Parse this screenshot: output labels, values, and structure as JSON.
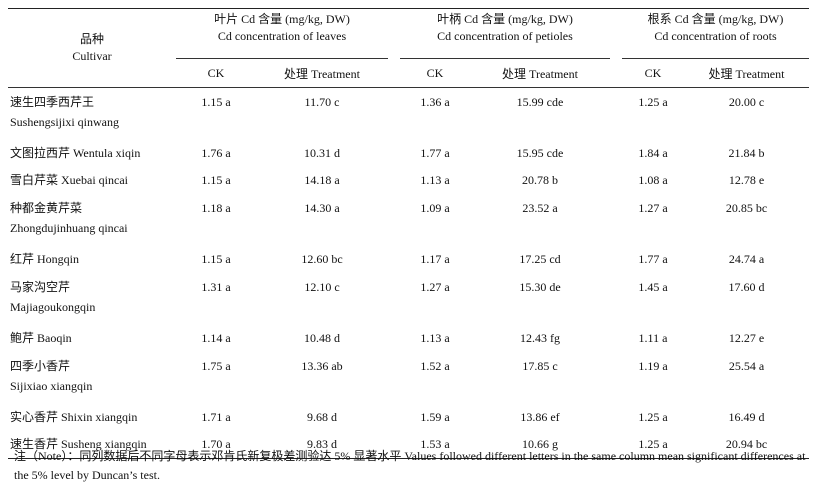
{
  "header": {
    "cultivar_cn": "品种",
    "cultivar_en": "Cultivar",
    "groups": [
      {
        "cn": "叶片 Cd 含量 (mg/kg, DW)",
        "en": "Cd concentration of leaves"
      },
      {
        "cn": "叶柄 Cd 含量 (mg/kg, DW)",
        "en": "Cd concentration of petioles"
      },
      {
        "cn": "根系 Cd 含量 (mg/kg, DW)",
        "en": "Cd concentration of roots"
      }
    ],
    "ck": "CK",
    "treatment": "处理 Treatment"
  },
  "rows": [
    {
      "name1": "速生四季西芹王",
      "name2": "Sushengsijixi qinwang",
      "leaf_ck": "1.15 a",
      "leaf_t": "11.70 c",
      "pet_ck": "1.36 a",
      "pet_t": "15.99 cde",
      "root_ck": "1.25 a",
      "root_t": "20.00 c"
    },
    {
      "name1": "文图拉西芹 Wentula xiqin",
      "name2": "",
      "leaf_ck": "1.76 a",
      "leaf_t": "10.31 d",
      "pet_ck": "1.77 a",
      "pet_t": "15.95 cde",
      "root_ck": "1.84 a",
      "root_t": "21.84 b"
    },
    {
      "name1": "雪白芹菜 Xuebai qincai",
      "name2": "",
      "leaf_ck": "1.15 a",
      "leaf_t": "14.18 a",
      "pet_ck": "1.13 a",
      "pet_t": "20.78 b",
      "root_ck": "1.08 a",
      "root_t": "12.78 e"
    },
    {
      "name1": "种都金黄芹菜",
      "name2": "Zhongdujinhuang qincai",
      "leaf_ck": "1.18 a",
      "leaf_t": "14.30 a",
      "pet_ck": "1.09 a",
      "pet_t": "23.52 a",
      "root_ck": "1.27 a",
      "root_t": "20.85 bc"
    },
    {
      "name1": "红芹 Hongqin",
      "name2": "",
      "leaf_ck": "1.15 a",
      "leaf_t": "12.60 bc",
      "pet_ck": "1.17 a",
      "pet_t": "17.25 cd",
      "root_ck": "1.77 a",
      "root_t": "24.74 a"
    },
    {
      "name1": "马家沟空芹",
      "name2": "Majiagoukongqin",
      "leaf_ck": "1.31 a",
      "leaf_t": "12.10 c",
      "pet_ck": "1.27 a",
      "pet_t": "15.30 de",
      "root_ck": "1.45 a",
      "root_t": "17.60 d"
    },
    {
      "name1": "鲍芹 Baoqin",
      "name2": "",
      "leaf_ck": "1.14 a",
      "leaf_t": "10.48 d",
      "pet_ck": "1.13 a",
      "pet_t": "12.43 fg",
      "root_ck": "1.11 a",
      "root_t": "12.27 e"
    },
    {
      "name1": "四季小香芹",
      "name2": "Sijixiao xiangqin",
      "leaf_ck": "1.75 a",
      "leaf_t": "13.36 ab",
      "pet_ck": "1.52 a",
      "pet_t": "17.85 c",
      "root_ck": "1.19 a",
      "root_t": "25.54 a"
    },
    {
      "name1": "实心香芹 Shixin xiangqin",
      "name2": "",
      "leaf_ck": "1.71 a",
      "leaf_t": "9.68 d",
      "pet_ck": "1.59 a",
      "pet_t": "13.86 ef",
      "root_ck": "1.25 a",
      "root_t": "16.49 d"
    },
    {
      "name1": "速生香芹 Susheng xiangqin",
      "name2": "",
      "leaf_ck": "1.70 a",
      "leaf_t": "9.83 d",
      "pet_ck": "1.53 a",
      "pet_t": "10.66 g",
      "root_ck": "1.25 a",
      "root_t": "20.94 bc"
    }
  ],
  "note": "注（Note）：同列数据后不同字母表示邓肯氏新复极差测验达 5% 显著水平 Values followed different letters in the same column mean significant differences at the 5% level by Duncan’s test."
}
